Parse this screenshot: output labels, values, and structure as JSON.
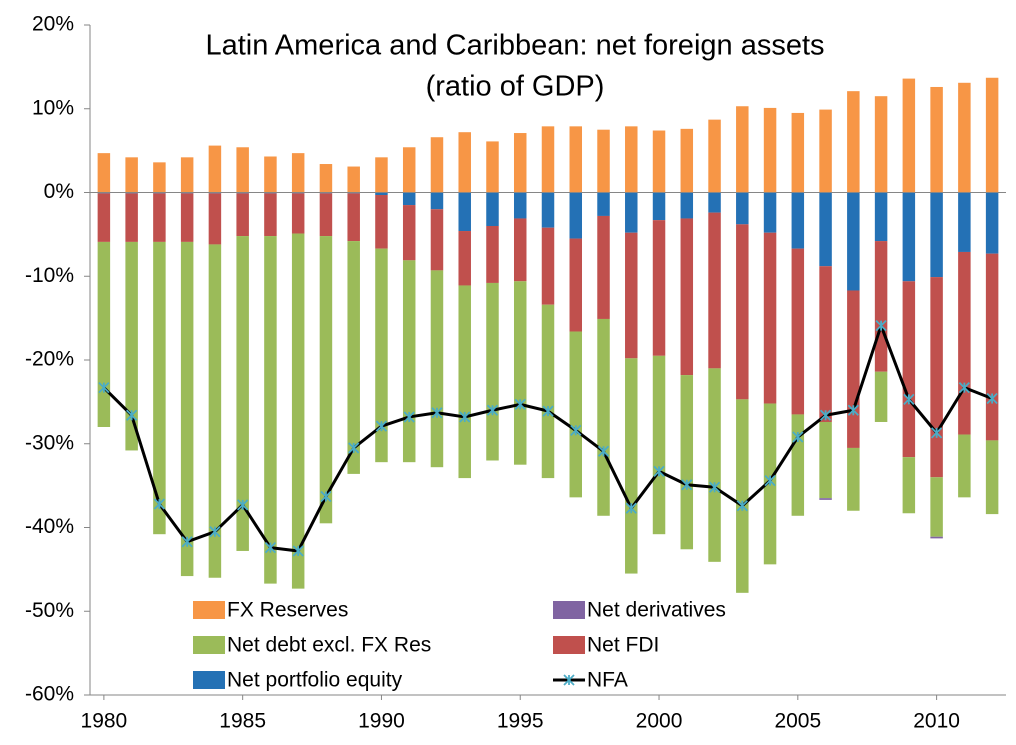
{
  "chart_data": {
    "type": "bar",
    "stacked": true,
    "title": "Latin America and Caribbean: net foreign assets",
    "subtitle": "(ratio of GDP)",
    "x": [
      1980,
      1981,
      1982,
      1983,
      1984,
      1985,
      1986,
      1987,
      1988,
      1989,
      1990,
      1991,
      1992,
      1993,
      1994,
      1995,
      1996,
      1997,
      1998,
      1999,
      2000,
      2001,
      2002,
      2003,
      2004,
      2005,
      2006,
      2007,
      2008,
      2009,
      2010,
      2011,
      2012
    ],
    "xlim": [
      1979.5,
      2012.5
    ],
    "xticks": [
      1980,
      1985,
      1990,
      1995,
      2000,
      2005,
      2010
    ],
    "ylim": [
      -60,
      20
    ],
    "yticks": [
      {
        "value": -60,
        "label": "-60%"
      },
      {
        "value": -50,
        "label": "-50%"
      },
      {
        "value": -40,
        "label": "-40%"
      },
      {
        "value": -30,
        "label": "-30%"
      },
      {
        "value": -20,
        "label": "-20%"
      },
      {
        "value": -10,
        "label": "-10%"
      },
      {
        "value": 0,
        "label": "0%"
      },
      {
        "value": 10,
        "label": "10%"
      },
      {
        "value": 20,
        "label": "20%"
      }
    ],
    "grid": false,
    "series": [
      {
        "name": "FX Reserves",
        "color": "#f79646",
        "values": [
          4.7,
          4.2,
          3.6,
          4.2,
          5.6,
          5.4,
          4.3,
          4.7,
          3.4,
          3.1,
          4.2,
          5.4,
          6.6,
          7.2,
          6.1,
          7.1,
          7.9,
          7.9,
          7.5,
          7.9,
          7.4,
          7.6,
          8.7,
          10.3,
          10.1,
          9.5,
          9.9,
          12.1,
          11.5,
          13.6,
          12.6,
          13.1,
          13.7
        ]
      },
      {
        "name": "Net derivatives",
        "color": "#8064a2",
        "values": [
          0,
          0,
          0,
          0,
          0,
          0,
          0,
          0,
          0,
          0,
          0,
          0,
          0,
          0,
          0,
          0,
          0,
          0,
          0,
          0,
          0,
          0,
          0,
          0,
          0,
          0,
          -0.2,
          0,
          0,
          0,
          -0.2,
          0,
          0
        ]
      },
      {
        "name": "Net debt excl. FX Res",
        "color": "#9bbb59",
        "values": [
          -22.1,
          -24.9,
          -34.9,
          -39.9,
          -39.8,
          -37.6,
          -41.5,
          -42.4,
          -34.3,
          -27.8,
          -25.5,
          -24.1,
          -23.5,
          -23.0,
          -21.2,
          -21.9,
          -20.7,
          -19.8,
          -23.5,
          -25.7,
          -21.3,
          -20.8,
          -23.1,
          -23.1,
          -19.2,
          -12.1,
          -9.1,
          -7.5,
          -6.0,
          -6.7,
          -7.1,
          -7.5,
          -8.8
        ]
      },
      {
        "name": "Net FDI",
        "color": "#c0504d",
        "values": [
          -5.8,
          -5.8,
          -5.8,
          -5.8,
          -6.1,
          -5.1,
          -5.1,
          -4.8,
          -5.1,
          -5.7,
          -6.4,
          -6.6,
          -7.3,
          -6.5,
          -6.8,
          -7.5,
          -9.2,
          -11.1,
          -12.3,
          -15.0,
          -16.2,
          -18.7,
          -18.6,
          -20.9,
          -20.4,
          -19.8,
          -18.6,
          -18.8,
          -15.6,
          -21.0,
          -23.9,
          -21.8,
          -22.3
        ]
      },
      {
        "name": "Net portfolio equity",
        "color": "#2471b5",
        "values": [
          -0.1,
          -0.1,
          -0.1,
          -0.1,
          -0.1,
          -0.1,
          -0.1,
          -0.1,
          -0.1,
          -0.1,
          -0.3,
          -1.5,
          -2.0,
          -4.6,
          -4.0,
          -3.1,
          -4.2,
          -5.5,
          -2.8,
          -4.8,
          -3.3,
          -3.1,
          -2.4,
          -3.8,
          -4.8,
          -6.7,
          -8.8,
          -11.7,
          -5.8,
          -10.6,
          -10.1,
          -7.1,
          -7.3
        ]
      },
      {
        "name": "NFA",
        "type": "line",
        "color": "#000000",
        "marker_color": "#4bacc6",
        "values": [
          -23.3,
          -26.6,
          -37.2,
          -41.7,
          -40.5,
          -37.3,
          -42.4,
          -42.8,
          -36.3,
          -30.5,
          -27.9,
          -26.8,
          -26.3,
          -26.8,
          -26.0,
          -25.3,
          -26.1,
          -28.4,
          -30.9,
          -37.7,
          -33.3,
          -34.9,
          -35.2,
          -37.4,
          -34.4,
          -29.2,
          -26.6,
          -26.0,
          -15.9,
          -24.7,
          -28.7,
          -23.3,
          -24.6
        ]
      }
    ]
  }
}
